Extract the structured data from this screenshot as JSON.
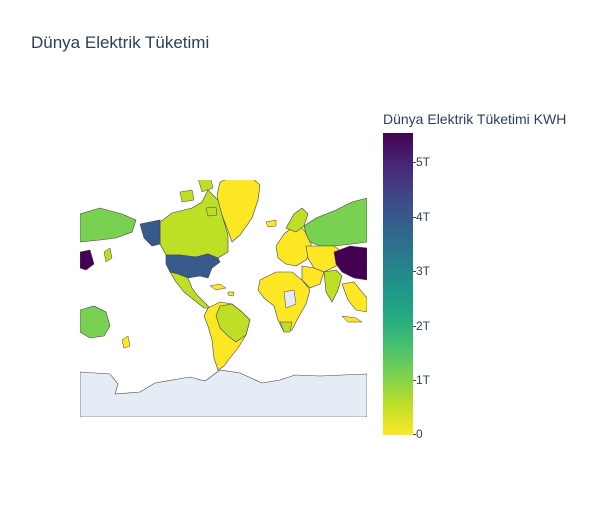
{
  "title": "Dünya Elektrik Tüketimi",
  "colorbar": {
    "title": "Dünya Elektrik Tüketimi KWH",
    "colorscale": "viridis-reversed",
    "range": [
      0,
      5500000000000
    ],
    "ticks": [
      {
        "label": "5T",
        "value": 5000000000000
      },
      {
        "label": "4T",
        "value": 4000000000000
      },
      {
        "label": "3T",
        "value": 3000000000000
      },
      {
        "label": "2T",
        "value": 2000000000000
      },
      {
        "label": "1T",
        "value": 1000000000000
      },
      {
        "label": "0",
        "value": 0
      }
    ]
  },
  "map": {
    "projection": "mercator",
    "ocean_color": "#ffffff",
    "land_nodata_color": "#e5ecf6",
    "border_color": "#444444",
    "colors": {
      "high": "#440154",
      "usa": "#375a8c",
      "mid": "#7ad151",
      "low": "#bddf26",
      "min": "#fde725"
    }
  }
}
